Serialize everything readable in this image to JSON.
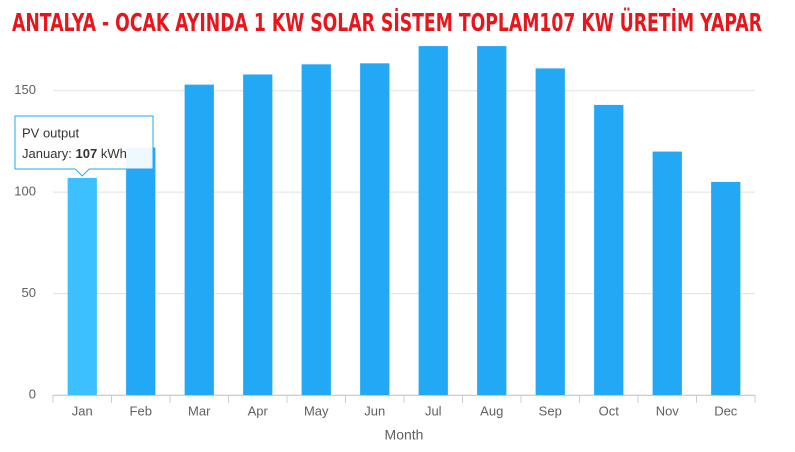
{
  "chart_data": {
    "type": "bar",
    "title": "ANTALYA - OCAK AYINDA 1 KW SOLAR SİSTEM TOPLAM107 KW ÜRETİM YAPAR",
    "x_label": "Month",
    "categories": [
      "Jan",
      "Feb",
      "Mar",
      "Apr",
      "May",
      "Jun",
      "Jul",
      "Aug",
      "Sep",
      "Oct",
      "Nov",
      "Dec"
    ],
    "values": [
      107,
      122,
      153,
      158,
      163,
      163.5,
      172,
      172,
      161,
      143,
      120,
      105
    ],
    "color": "#22a8f5",
    "highlight_color": "#3cc0ff",
    "highlight_index": 0,
    "ylim": [
      0,
      175
    ],
    "yticks": [
      0,
      50,
      100,
      150
    ],
    "grid": true,
    "tooltip": {
      "title": "PV output",
      "category": "January:",
      "value_path": "chart_data.values.0",
      "unit": "kWh"
    }
  }
}
